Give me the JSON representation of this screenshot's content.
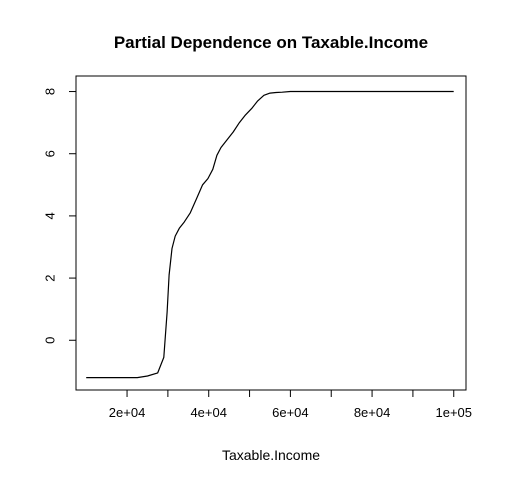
{
  "chart_data": {
    "type": "line",
    "title": "Partial Dependence on Taxable.Income",
    "xlabel": "Taxable.Income",
    "ylabel": "",
    "xlim": [
      7500,
      103000
    ],
    "ylim": [
      -1.6,
      8.5
    ],
    "x_ticks": [
      {
        "value": 20000,
        "label": "2e+04"
      },
      {
        "value": 40000,
        "label": "4e+04"
      },
      {
        "value": 60000,
        "label": "6e+04"
      },
      {
        "value": 80000,
        "label": "8e+04"
      },
      {
        "value": 100000,
        "label": "1e+05"
      }
    ],
    "x_minor_ticks": [
      30000,
      50000,
      70000,
      90000
    ],
    "y_ticks": [
      {
        "value": 0,
        "label": "0"
      },
      {
        "value": 2,
        "label": "2"
      },
      {
        "value": 4,
        "label": "4"
      },
      {
        "value": 6,
        "label": "6"
      },
      {
        "value": 8,
        "label": "8"
      }
    ],
    "grid": false,
    "legend": "none",
    "line_color": "#000000",
    "series": [
      {
        "x": [
          10000,
          20000,
          22500,
          25000,
          27500,
          29000,
          29800,
          30300,
          31000,
          31800,
          32800,
          34000,
          35500,
          37000,
          38500,
          39800,
          41000,
          42000,
          43000,
          44500,
          46000,
          47500,
          49000,
          50500,
          52000,
          53500,
          55000,
          56500,
          58000,
          60000,
          65000,
          70000,
          80000,
          90000,
          100000
        ],
        "y": [
          -1.2,
          -1.2,
          -1.2,
          -1.15,
          -1.05,
          -0.55,
          0.9,
          2.1,
          2.95,
          3.35,
          3.6,
          3.8,
          4.1,
          4.55,
          5.0,
          5.2,
          5.5,
          5.95,
          6.2,
          6.45,
          6.7,
          7.0,
          7.25,
          7.45,
          7.7,
          7.88,
          7.95,
          7.97,
          7.98,
          8.0,
          8.0,
          8.0,
          8.0,
          8.0,
          8.0
        ]
      }
    ]
  }
}
